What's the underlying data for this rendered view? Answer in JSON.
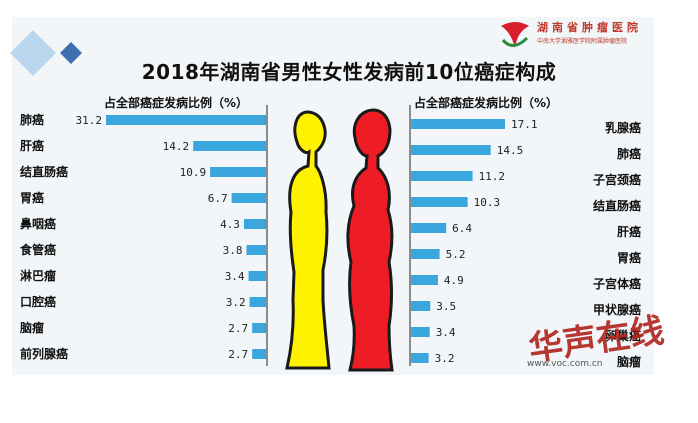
{
  "title": "2018年湖南省男性女性发病前10位癌症构成",
  "logo": {
    "name": "湖南省肿瘤医院",
    "subtitle": "中南大学湘雅医学院附属肿瘤医院"
  },
  "watermark": {
    "text": "华声在线",
    "url": "www.voc.com.cn"
  },
  "colors": {
    "bar": "#3aa6de",
    "male_figure": "#fff200",
    "female_figure": "#ee1c24",
    "figure_stroke": "#1a1a1a"
  },
  "chart_data": [
    {
      "type": "bar",
      "orientation": "horizontal",
      "direction": "right-to-left",
      "group": "男性",
      "axis_caption": "占全部癌症发病比例（%）",
      "categories": [
        "肺癌",
        "肝癌",
        "结直肠癌",
        "胃癌",
        "鼻咽癌",
        "食管癌",
        "淋巴瘤",
        "口腔癌",
        "脑瘤",
        "前列腺癌"
      ],
      "values": [
        31.2,
        14.2,
        10.9,
        6.7,
        4.3,
        3.8,
        3.4,
        3.2,
        2.7,
        2.7
      ],
      "value_labels": [
        "31.2",
        "14.2",
        "10.9",
        "6.7",
        "4.3",
        "3.8",
        "3.4",
        "3.2",
        "2.7",
        "2.7"
      ]
    },
    {
      "type": "bar",
      "orientation": "horizontal",
      "direction": "left-to-right",
      "group": "女性",
      "axis_caption": "占全部癌症发病比例（%）",
      "categories": [
        "乳腺癌",
        "肺癌",
        "子宫颈癌",
        "结直肠癌",
        "肝癌",
        "胃癌",
        "子宫体癌",
        "甲状腺癌",
        "卵巢癌",
        "脑瘤"
      ],
      "values": [
        17.1,
        14.5,
        11.2,
        10.3,
        6.4,
        5.2,
        4.9,
        3.5,
        3.4,
        3.2
      ],
      "value_labels": [
        "17.1",
        "14.5",
        "11.2",
        "10.3",
        "6.4",
        "5.2",
        "4.9",
        "3.5",
        "3.4",
        "3.2"
      ]
    }
  ]
}
